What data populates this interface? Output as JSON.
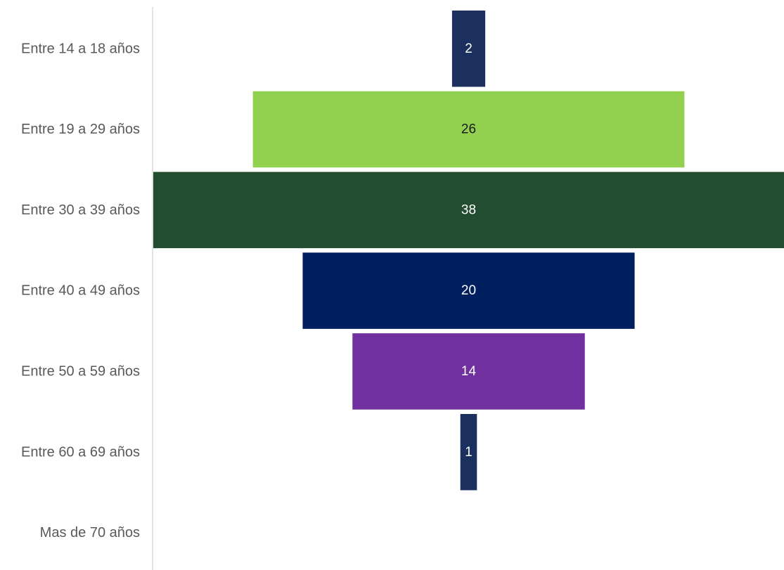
{
  "chart_data": {
    "type": "bar",
    "subtype": "funnel",
    "orientation": "horizontal",
    "categories": [
      "Entre 14 a 18 años",
      "Entre 19 a 29 años",
      "Entre 30 a 39 años",
      "Entre 40 a 49 años",
      "Entre 50 a 59 años",
      "Entre 60 a 69 años",
      "Mas de 70 años"
    ],
    "values": [
      2,
      26,
      38,
      20,
      14,
      1,
      0
    ],
    "data_labels": [
      "2",
      "26",
      "38",
      "20",
      "14",
      "1",
      ""
    ],
    "colors": [
      "#1b305e",
      "#92d050",
      "#234d31",
      "#001f5f",
      "#7030a0",
      "#1b305e",
      "#1b305e"
    ],
    "label_colors": [
      "#ffffff",
      "#1a1a1a",
      "#ffffff",
      "#ffffff",
      "#ffffff",
      "#ffffff",
      "#ffffff"
    ],
    "title": "",
    "xlabel": "",
    "ylabel": "",
    "grid": false,
    "legend": "none",
    "axis_line_color": "#d9d9d9"
  }
}
